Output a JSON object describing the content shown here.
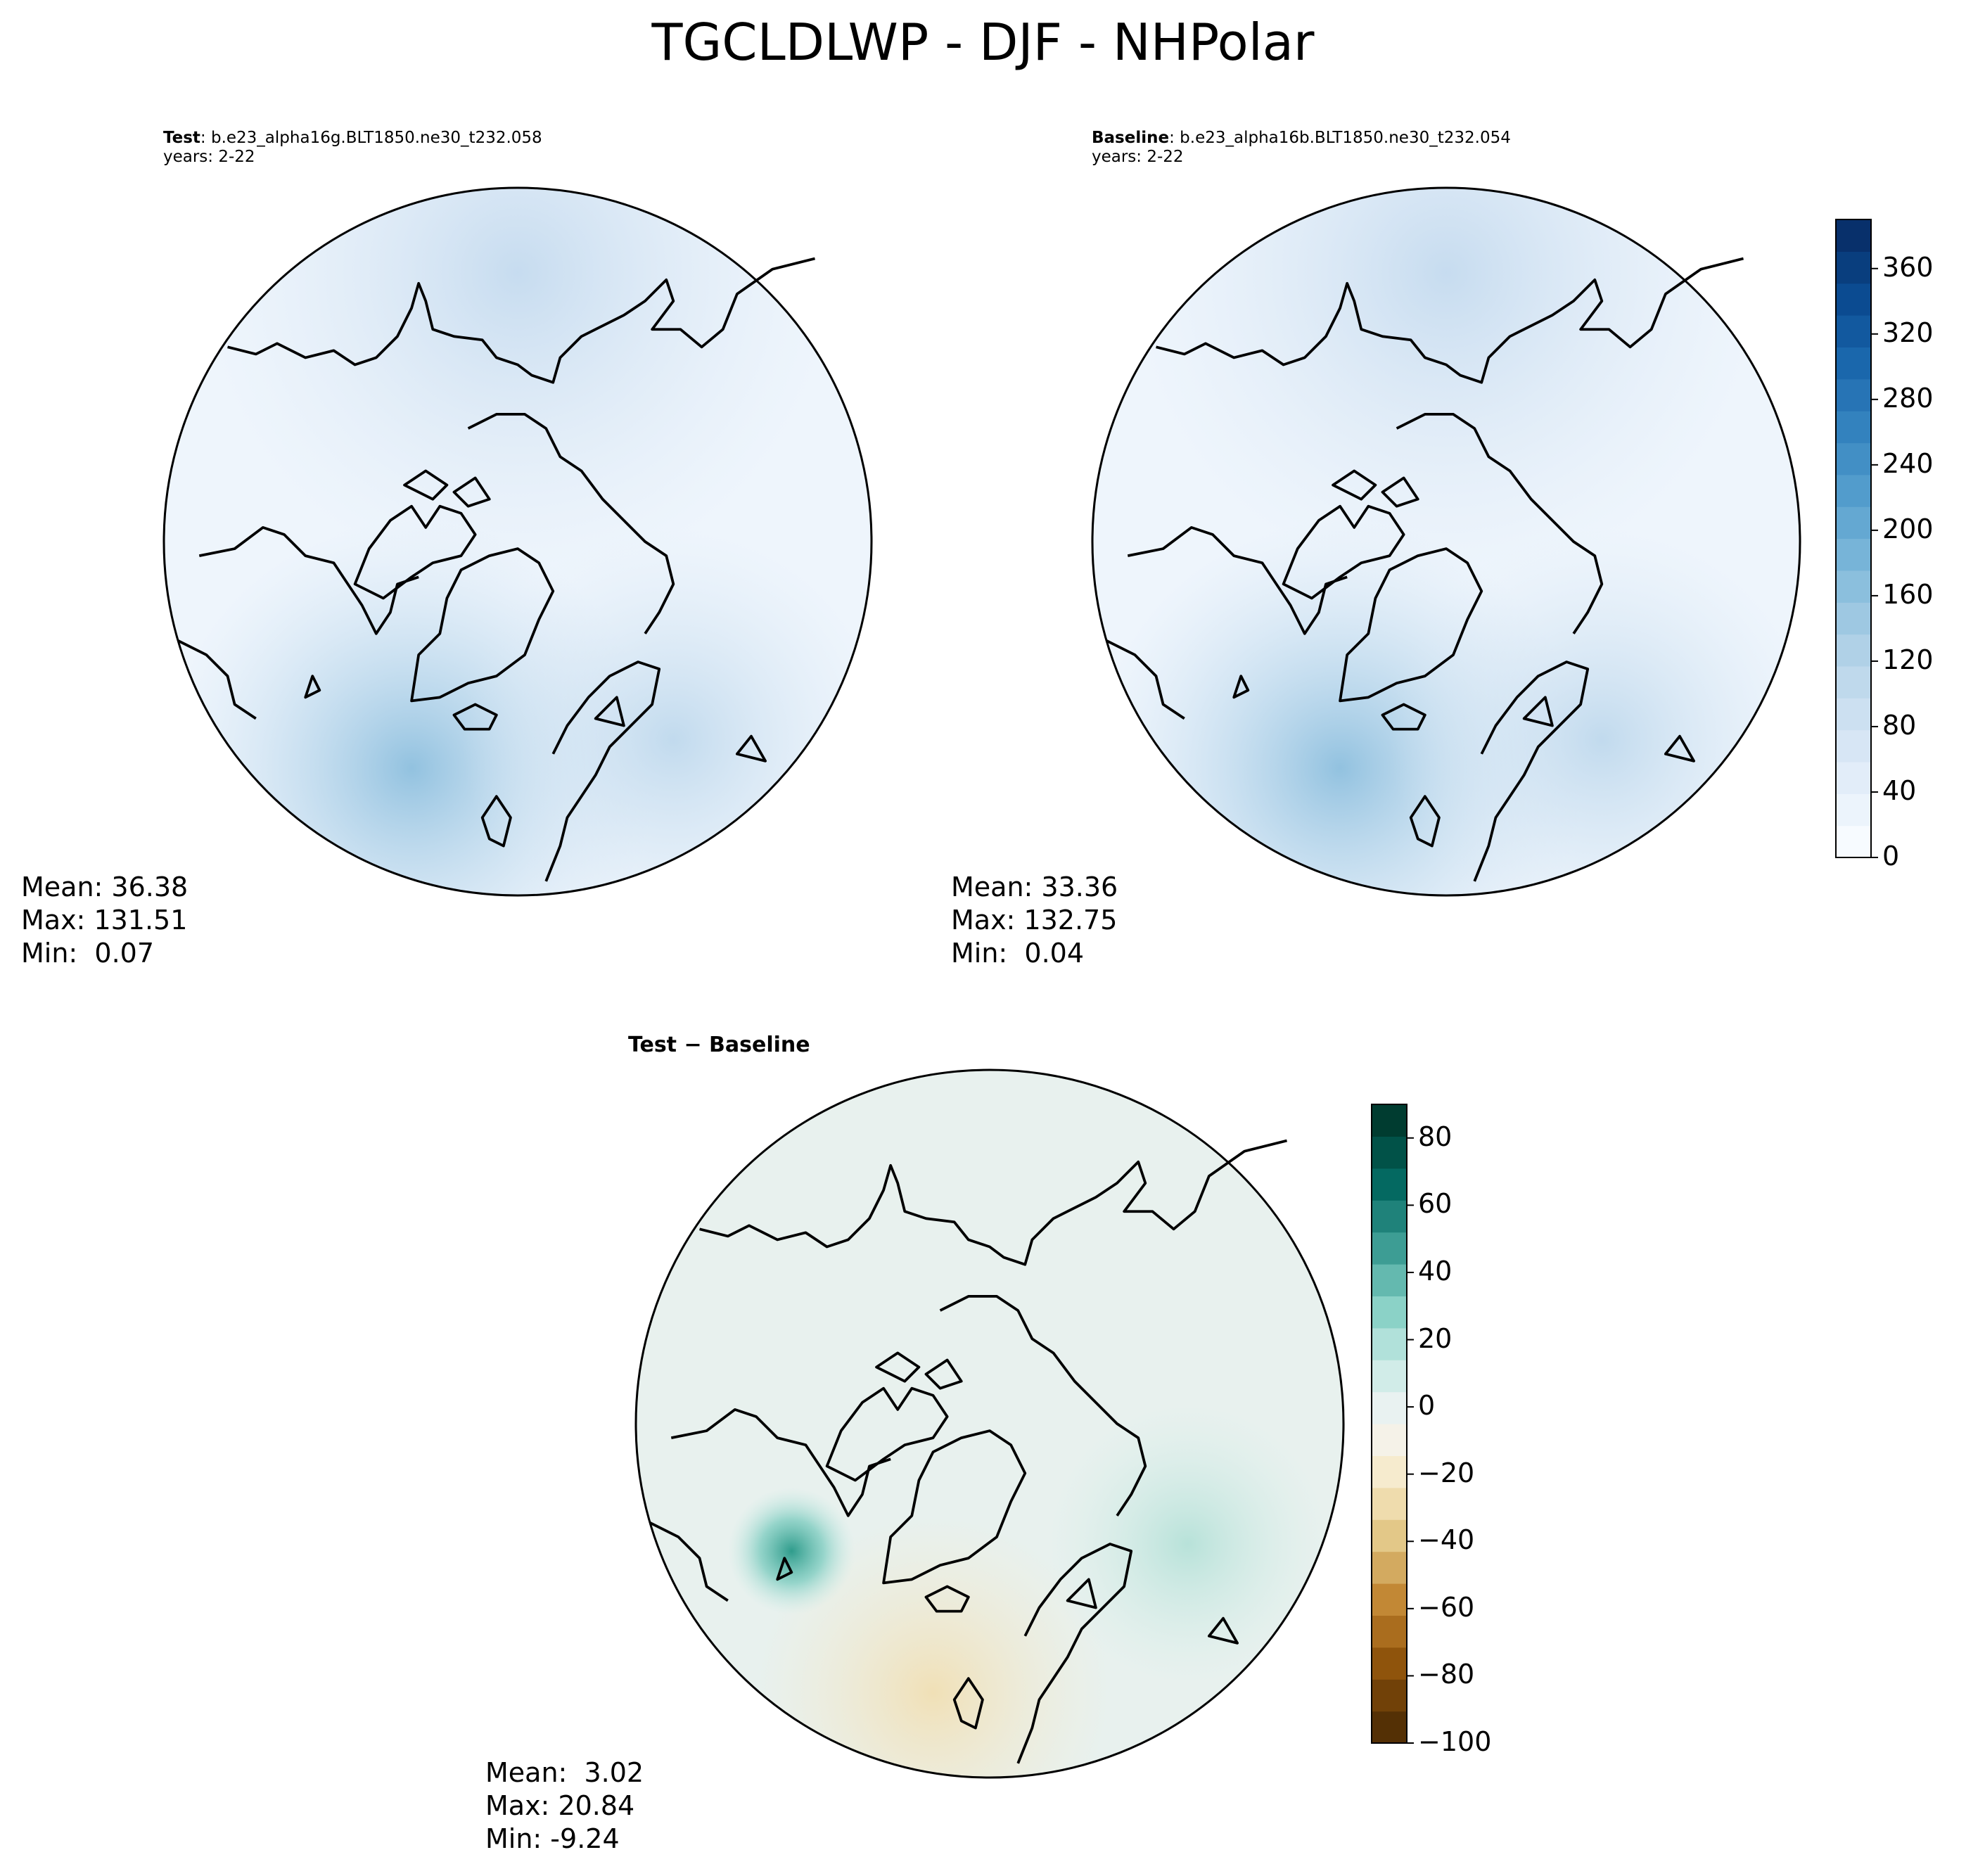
{
  "figure_title": "TGCLDLWP - DJF - NHPolar",
  "panels": {
    "test": {
      "label": "Test",
      "case": ": b.e23_alpha16g.BLT1850.ne30_t232.058",
      "years": "years: 2-22",
      "stats": {
        "mean": "Mean: 36.38",
        "max": "Max: 131.51",
        "min": "Min:  0.07"
      }
    },
    "baseline": {
      "label": "Baseline",
      "case": ": b.e23_alpha16b.BLT1850.ne30_t232.054",
      "years": "years: 2-22",
      "stats": {
        "mean": "Mean: 33.36",
        "max": "Max: 132.75",
        "min": "Min:  0.04"
      }
    },
    "diff": {
      "title": "Test − Baseline",
      "stats": {
        "mean": "Mean:  3.02",
        "max": "Max: 20.84",
        "min": "Min: -9.24"
      }
    }
  },
  "colorbars": {
    "abs": {
      "ticks": [
        "0",
        "40",
        "80",
        "120",
        "160",
        "200",
        "240",
        "280",
        "320",
        "360"
      ],
      "range": [
        0,
        390
      ],
      "colors": [
        "#f7fbff",
        "#e3eef9",
        "#cfe1f2",
        "#b5d4e9",
        "#93c3df",
        "#6daed5",
        "#4b97c9",
        "#2f7ebc",
        "#1864aa",
        "#0a4a90",
        "#08306b"
      ]
    },
    "diff": {
      "ticks": [
        "80",
        "60",
        "40",
        "20",
        "0",
        "−20",
        "−40",
        "−60",
        "−80",
        "−100"
      ],
      "range": [
        -100,
        90
      ],
      "colors": [
        "#543005",
        "#8c510a",
        "#bf812d",
        "#dfc27d",
        "#f6e8c3",
        "#f5f5f5",
        "#c7eae5",
        "#80cdc1",
        "#35978f",
        "#01665e",
        "#003c30"
      ]
    }
  }
}
